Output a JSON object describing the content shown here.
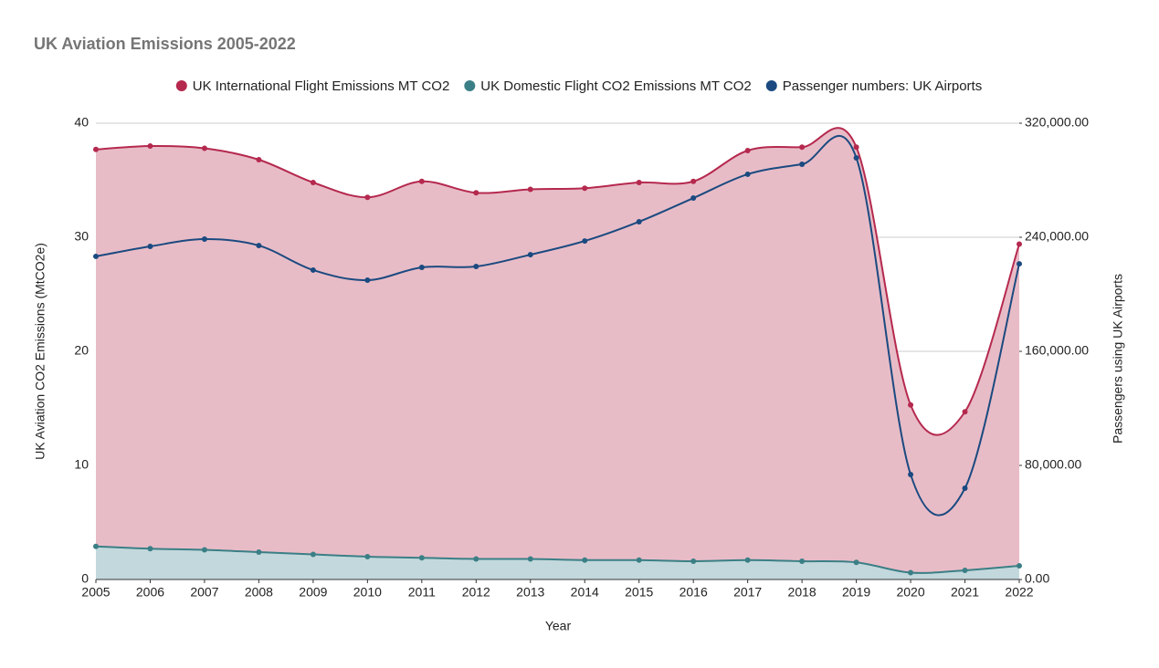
{
  "chart_data": {
    "type": "line",
    "title": "UK Aviation Emissions 2005-2022",
    "x_label": "Year",
    "y_label": "UK Aviation CO2 Emissions (MtCO2e)",
    "y2_label": "Passengers using UK Airports",
    "x": [
      2005,
      2006,
      2007,
      2008,
      2009,
      2010,
      2011,
      2012,
      2013,
      2014,
      2015,
      2016,
      2017,
      2018,
      2019,
      2020,
      2021,
      2022
    ],
    "xlim": [
      2005,
      2022
    ],
    "xticks": [
      2005,
      2006,
      2007,
      2008,
      2009,
      2010,
      2011,
      2012,
      2013,
      2014,
      2015,
      2016,
      2017,
      2018,
      2019,
      2020,
      2021,
      2022
    ],
    "ylim": [
      0,
      40
    ],
    "yticks": [
      0,
      10,
      20,
      30,
      40
    ],
    "y2lim": [
      0,
      320000
    ],
    "y2ticks": [
      {
        "value": 0,
        "label": "0.00"
      },
      {
        "value": 80000,
        "label": "80,000.00"
      },
      {
        "value": 160000,
        "label": "160,000.00"
      },
      {
        "value": 240000,
        "label": "240,000.00"
      },
      {
        "value": 320000,
        "label": "320,000.00"
      }
    ],
    "grid": true,
    "legend": "top",
    "series": [
      {
        "name": "UK International Flight Emissions MT CO2",
        "color": "#b5294e",
        "area": true,
        "area_color": "#e8bcc7",
        "values": [
          37.7,
          38.0,
          37.8,
          36.8,
          34.8,
          33.5,
          34.9,
          33.9,
          34.2,
          34.3,
          34.8,
          34.9,
          37.6,
          37.9,
          37.9,
          15.3,
          14.7,
          29.4
        ]
      },
      {
        "name": "UK Domestic Flight CO2 Emissions MT CO2",
        "color": "#3b7f86",
        "area": true,
        "area_color": "#c3d8dc",
        "values": [
          2.9,
          2.7,
          2.6,
          2.4,
          2.2,
          2.0,
          1.9,
          1.8,
          1.8,
          1.7,
          1.7,
          1.6,
          1.7,
          1.6,
          1.5,
          0.6,
          0.8,
          1.2
        ]
      },
      {
        "name": "Passenger numbers: UK Airports",
        "color": "#1b4a80",
        "axis": "y2",
        "area": false,
        "values": [
          226600,
          233600,
          238700,
          234200,
          217000,
          209900,
          218900,
          219500,
          227800,
          237400,
          250900,
          267500,
          284200,
          291200,
          295700,
          73600,
          64000,
          221400
        ]
      }
    ]
  }
}
